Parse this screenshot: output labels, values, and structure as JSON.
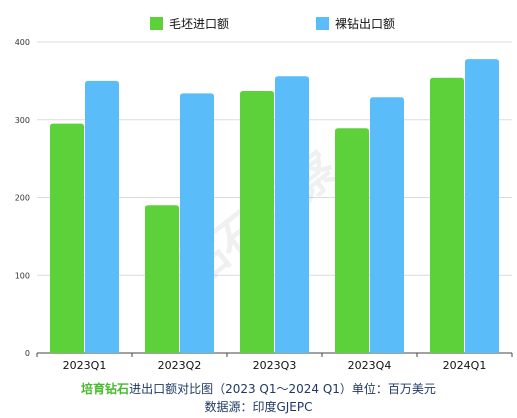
{
  "chart_data": {
    "type": "bar",
    "categories": [
      "2023Q1",
      "2023Q2",
      "2023Q3",
      "2023Q4",
      "2024Q1"
    ],
    "series": [
      {
        "name": "毛坯进口额",
        "color": "#5cd13a",
        "values": [
          295,
          190,
          337,
          289,
          354
        ]
      },
      {
        "name": "裸钻出口额",
        "color": "#5bbcfa",
        "values": [
          350,
          334,
          356,
          329,
          378
        ]
      }
    ],
    "ylim": [
      0,
      400
    ],
    "yticks": [
      0,
      100,
      200,
      300,
      400
    ],
    "grid": true,
    "legend_position": "top-center"
  },
  "caption": {
    "highlight": "培育钻石",
    "text": "进出口额对比图（2023 Q1～2024 Q1）单位：百万美元"
  },
  "source": "数据源：印度GJEPC",
  "watermark": "钻石观察"
}
